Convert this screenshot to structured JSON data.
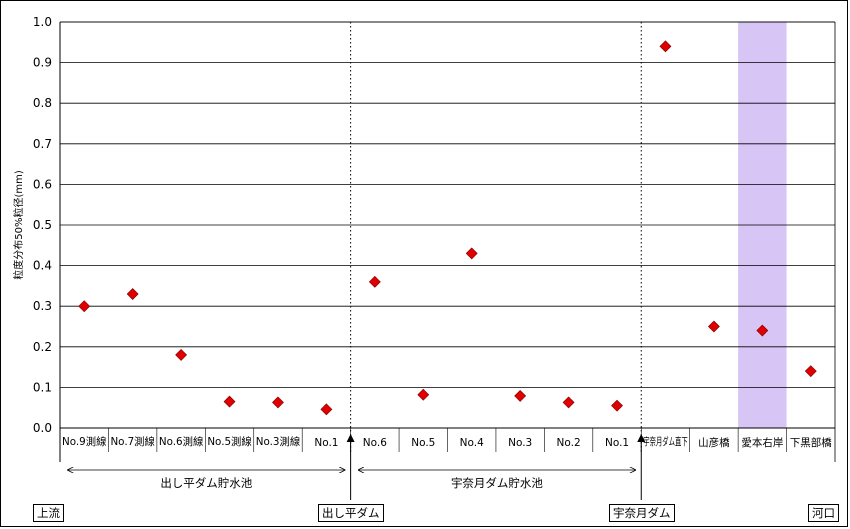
{
  "chart_data": {
    "type": "scatter",
    "title": "",
    "ylabel": "粒度分布50%粒径(mm)",
    "ylim": [
      0,
      1.0
    ],
    "yticks": [
      "0.0",
      "0.1",
      "0.2",
      "0.3",
      "0.4",
      "0.5",
      "0.6",
      "0.7",
      "0.8",
      "0.9",
      "1.0"
    ],
    "grid": true,
    "marker": "diamond",
    "marker_color": "#e00000",
    "highlight_color": "#d7c6f5",
    "categories": [
      "No.9測線",
      "No.7測線",
      "No.6測線",
      "No.5測線",
      "No.3測線",
      "No.1",
      "No.6",
      "No.5",
      "No.4",
      "No.3",
      "No.2",
      "No.1",
      "宇奈月ダム直下",
      "山彦橋",
      "愛本右岸",
      "下黒部橋"
    ],
    "values": [
      0.3,
      0.33,
      0.18,
      0.065,
      0.063,
      0.046,
      0.36,
      0.082,
      0.43,
      0.079,
      0.063,
      0.055,
      0.94,
      0.25,
      0.24,
      0.14
    ],
    "highlight_category": "愛本右岸",
    "groups": [
      {
        "label": "出し平ダム貯水池",
        "from": 0,
        "to": 5
      },
      {
        "label": "宇奈月ダム貯水池",
        "from": 6,
        "to": 11
      }
    ],
    "dams": [
      {
        "label": "出し平ダム",
        "after": 5
      },
      {
        "label": "宇奈月ダム",
        "after": 11
      }
    ],
    "flow": {
      "upstream": "上流",
      "downstream": "河口"
    }
  }
}
